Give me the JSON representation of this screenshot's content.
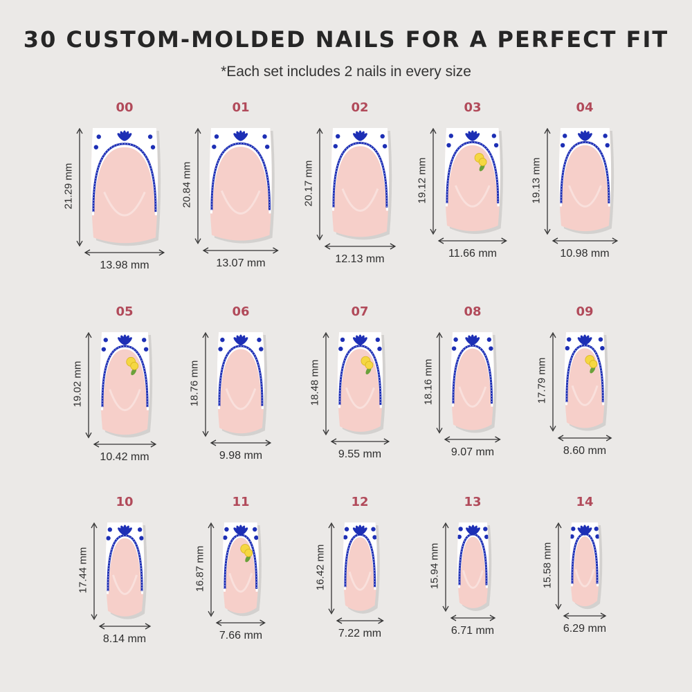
{
  "title": "30 CUSTOM-MOLDED NAILS FOR A PERFECT FIT",
  "subtitle": "*Each set includes 2 nails in every size",
  "colors": {
    "background": "#ebe9e7",
    "size_label": "#b14a5a",
    "nail_pink": "#f6cfc9",
    "nail_tip": "#ffffff",
    "accent_blue": "#1d2fb5",
    "lemon_yellow": "#f5d742",
    "leaf_green": "#6aa13a"
  },
  "nails": [
    {
      "size": "00",
      "length": "21.29 mm",
      "width": "13.98 mm",
      "lemon": false
    },
    {
      "size": "01",
      "length": "20.84 mm",
      "width": "13.07 mm",
      "lemon": false
    },
    {
      "size": "02",
      "length": "20.17 mm",
      "width": "12.13 mm",
      "lemon": false
    },
    {
      "size": "03",
      "length": "19.12 mm",
      "width": "11.66 mm",
      "lemon": true
    },
    {
      "size": "04",
      "length": "19.13 mm",
      "width": "10.98 mm",
      "lemon": false
    },
    {
      "size": "05",
      "length": "19.02 mm",
      "width": "10.42 mm",
      "lemon": true
    },
    {
      "size": "06",
      "length": "18.76 mm",
      "width": "9.98 mm",
      "lemon": false
    },
    {
      "size": "07",
      "length": "18.48 mm",
      "width": "9.55 mm",
      "lemon": true
    },
    {
      "size": "08",
      "length": "18.16 mm",
      "width": "9.07 mm",
      "lemon": false
    },
    {
      "size": "09",
      "length": "17.79 mm",
      "width": "8.60 mm",
      "lemon": true
    },
    {
      "size": "10",
      "length": "17.44 mm",
      "width": "8.14 mm",
      "lemon": false
    },
    {
      "size": "11",
      "length": "16.87 mm",
      "width": "7.66 mm",
      "lemon": true
    },
    {
      "size": "12",
      "length": "16.42 mm",
      "width": "7.22 mm",
      "lemon": false
    },
    {
      "size": "13",
      "length": "15.94 mm",
      "width": "6.71 mm",
      "lemon": false
    },
    {
      "size": "14",
      "length": "15.58 mm",
      "width": "6.29 mm",
      "lemon": false
    }
  ]
}
